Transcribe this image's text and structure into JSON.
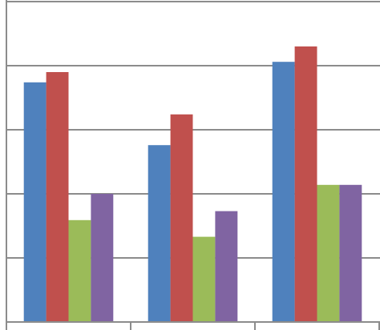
{
  "chart_data": {
    "type": "bar",
    "categories": [
      null,
      null,
      null
    ],
    "series": [
      {
        "color": "#4f81bd",
        "values": [
          3.74,
          2.76,
          4.06
        ]
      },
      {
        "color": "#c0504d",
        "values": [
          3.9,
          3.24,
          4.3
        ]
      },
      {
        "color": "#9bbb59",
        "values": [
          1.59,
          1.33,
          2.14
        ]
      },
      {
        "color": "#8064a2",
        "values": [
          2.0,
          1.73,
          2.14
        ]
      }
    ],
    "ylim": [
      0,
      5
    ],
    "yticks": [
      0,
      1,
      2,
      3,
      4,
      5
    ],
    "grid": true
  }
}
